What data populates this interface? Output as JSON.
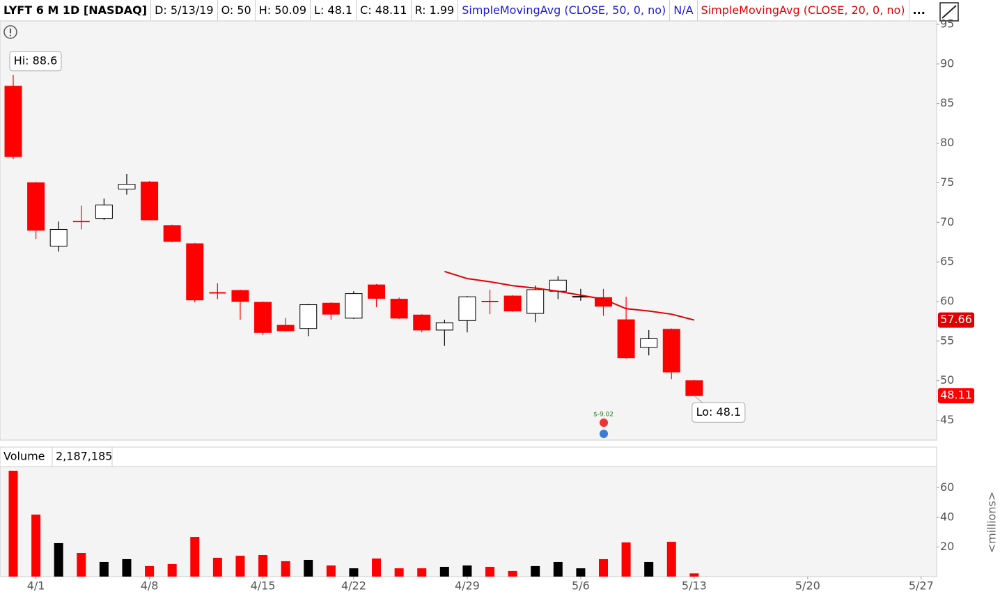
{
  "header": [
    "LYFT 6 M 1D [NASDAQ]",
    "D: 5/13/19",
    "O: 50",
    "H: 50.09",
    "L: 48.1",
    "C: 48.11",
    "R: 1.99",
    "SimpleMovingAvg (CLOSE, 50, 0, no)",
    "N/A",
    "..."
  ],
  "chart_data": [
    {
      "type": "candlestick",
      "x": [
        0,
        1,
        2,
        3,
        4,
        5,
        6,
        7,
        8,
        9,
        10,
        11,
        12,
        13,
        14,
        15,
        16,
        17,
        18,
        19,
        20,
        21,
        22,
        23,
        24,
        25,
        26,
        27,
        28,
        29,
        30
      ],
      "open": [
        87.2,
        75.0,
        67.0,
        70.2,
        70.5,
        74.2,
        75.1,
        69.6,
        67.3,
        61.2,
        61.4,
        59.9,
        57.0,
        56.6,
        59.8,
        57.9,
        62.1,
        60.3,
        58.3,
        56.4,
        57.6,
        60.1,
        60.7,
        58.5,
        61.3,
        60.6,
        60.5,
        57.7,
        54.2,
        56.5,
        50
      ],
      "high": [
        88.6,
        75.1,
        70.1,
        72.1,
        73.0,
        76.1,
        75.2,
        69.7,
        67.4,
        62.3,
        61.5,
        60.0,
        57.9,
        59.7,
        59.9,
        61.3,
        62.2,
        60.5,
        58.4,
        57.7,
        60.7,
        61.5,
        60.8,
        62.0,
        63.2,
        61.6,
        61.6,
        60.6,
        56.4,
        56.6,
        50.09
      ],
      "low": [
        78.0,
        67.9,
        66.3,
        69.1,
        70.3,
        73.5,
        70.3,
        67.5,
        59.9,
        60.3,
        57.7,
        55.8,
        56.2,
        55.6,
        57.7,
        57.8,
        59.3,
        57.8,
        56.1,
        54.4,
        56.1,
        58.4,
        58.7,
        57.4,
        60.3,
        60.1,
        58.2,
        52.8,
        53.2,
        50.2,
        48.1
      ],
      "close": [
        78.3,
        69.0,
        69.1,
        70.1,
        72.2,
        74.8,
        70.3,
        67.6,
        60.2,
        61.1,
        60.0,
        56.1,
        56.3,
        59.6,
        58.4,
        61.0,
        60.4,
        57.9,
        56.4,
        57.3,
        60.6,
        60.0,
        58.8,
        61.5,
        62.7,
        60.6,
        59.4,
        52.9,
        55.3,
        51.1,
        48.11
      ],
      "up_fill": "#ffffff",
      "down_fill": "#ff0000",
      "up_stroke": "#000000",
      "down_stroke": "#ff0000",
      "series": [
        {
          "name": "SimpleMovingAvg (CLOSE, 20, 0, no)",
          "color": "#e00000",
          "values": [
            null,
            null,
            null,
            null,
            null,
            null,
            null,
            null,
            null,
            null,
            null,
            null,
            null,
            null,
            null,
            null,
            null,
            null,
            null,
            63.8,
            62.9,
            62.5,
            62.0,
            61.7,
            61.3,
            60.8,
            60.3,
            59.1,
            58.8,
            58.4,
            57.66
          ]
        }
      ],
      "xlim": [
        -0.583,
        40.68
      ],
      "ylim": [
        42.5,
        95.44
      ],
      "yticks": [
        45,
        50,
        55,
        60,
        65,
        70,
        75,
        80,
        85,
        90,
        95
      ],
      "annotations": [
        "Hi: 88.6",
        "Lo: 48.1",
        "$-9.02"
      ]
    },
    {
      "type": "bar",
      "title": "Volume",
      "header_value": "2,187,185",
      "y_label": "<millions>",
      "x": [
        0,
        1,
        2,
        3,
        4,
        5,
        6,
        7,
        8,
        9,
        10,
        11,
        12,
        13,
        14,
        15,
        16,
        17,
        18,
        19,
        20,
        21,
        22,
        23,
        24,
        25,
        26,
        27,
        28,
        29,
        30
      ],
      "values": [
        71.5,
        41.9,
        22.6,
        16.0,
        9.9,
        11.8,
        7.1,
        8.5,
        26.8,
        12.7,
        14.1,
        14.6,
        10.4,
        11.3,
        7.5,
        5.6,
        12.2,
        5.6,
        5.6,
        6.6,
        7.5,
        6.6,
        3.8,
        7.1,
        9.9,
        5.6,
        11.8,
        23.1,
        9.9,
        23.5,
        2.187185
      ],
      "up_color": "#000000",
      "down_color": "#ff0000",
      "xlim": [
        -0.583,
        40.68
      ],
      "ylim": [
        0,
        87.5
      ],
      "yticks": [
        20,
        40,
        60
      ],
      "xticks": [
        {
          "value": 1,
          "label": "4/1"
        },
        {
          "value": 6,
          "label": "4/8"
        },
        {
          "value": 11,
          "label": "4/15"
        },
        {
          "value": 15,
          "label": "4/22"
        },
        {
          "value": 20,
          "label": "4/29"
        },
        {
          "value": 25,
          "label": "5/6"
        },
        {
          "value": 30,
          "label": "5/13"
        },
        {
          "value": 35,
          "label": "5/20"
        },
        {
          "value": 40,
          "label": "5/27"
        }
      ]
    }
  ]
}
